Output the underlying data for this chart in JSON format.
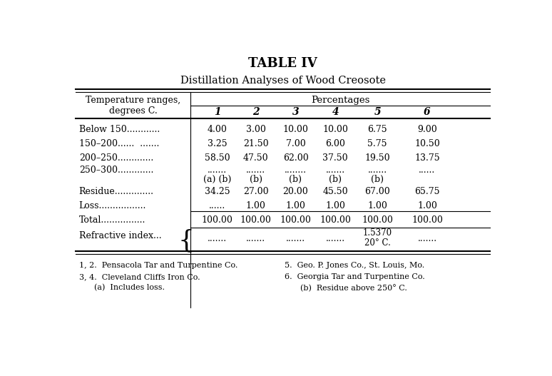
{
  "title1": "TABLE IV",
  "title2": "Distillation Analyses of Wood Creosote",
  "col_header_group": "Percentages",
  "col_header_left": "Temperature ranges,\ndegrees C.",
  "col_numbers": [
    "1",
    "2",
    "3",
    "4",
    "5",
    "6"
  ],
  "rows": [
    {
      "label": "Below 150............",
      "vals": [
        "4.00",
        "3.00",
        "10.00",
        "10.00",
        "6.75",
        "9.00"
      ],
      "is_total": false,
      "is_refractive": false
    },
    {
      "label": "150–200......  .......",
      "vals": [
        "3.25",
        "21.50",
        "7.00",
        "6.00",
        "5.75",
        "10.50"
      ],
      "is_total": false,
      "is_refractive": false
    },
    {
      "label": "200–250.............",
      "vals": [
        "58.50",
        "47.50",
        "62.00",
        "37.50",
        "19.50",
        "13.75"
      ],
      "is_total": false,
      "is_refractive": false
    },
    {
      "label": "250–300.............",
      "vals": [
        ".......",
        ".......",
        "........",
        ".......",
        ".......",
        "......"
      ],
      "is_total": false,
      "is_refractive": false
    },
    {
      "label": "",
      "vals": [
        "(a) (b)",
        "(b)",
        "(b)",
        "(b)",
        "(b)",
        ""
      ],
      "is_total": false,
      "is_refractive": false
    },
    {
      "label": "Residue..............",
      "vals": [
        "34.25",
        "27.00",
        "20.00",
        "45.50",
        "67.00",
        "65.75"
      ],
      "is_total": false,
      "is_refractive": false
    },
    {
      "label": "Loss.................",
      "vals": [
        "......",
        "1.00",
        "1.00",
        "1.00",
        "1.00",
        "1.00"
      ],
      "is_total": false,
      "is_refractive": false
    },
    {
      "label": "Total................",
      "vals": [
        "100.00",
        "100.00",
        "100.00",
        "100.00",
        "100.00",
        "100.00"
      ],
      "is_total": true,
      "is_refractive": false
    },
    {
      "label": "Refractive index...",
      "vals": [
        ".......",
        ".......",
        ".......",
        ".......",
        "1.5370\n20° C.",
        "......."
      ],
      "is_total": false,
      "is_refractive": true
    }
  ],
  "footnotes_left": [
    "1, 2.  Pensacola Tar and Turpentine Co.",
    "3, 4.  Cleveland Cliffs Iron Co.",
    "(a)  Includes loss."
  ],
  "footnotes_right": [
    "5.  Geo. P. Jones Co., St. Louis, Mo.",
    "6.  Georgia Tar and Turpentine Co.",
    "(b)  Residue above 250° C."
  ],
  "bg_color": "#ffffff",
  "text_color": "#000000",
  "lw_thick": 1.5,
  "lw_thin": 0.8
}
